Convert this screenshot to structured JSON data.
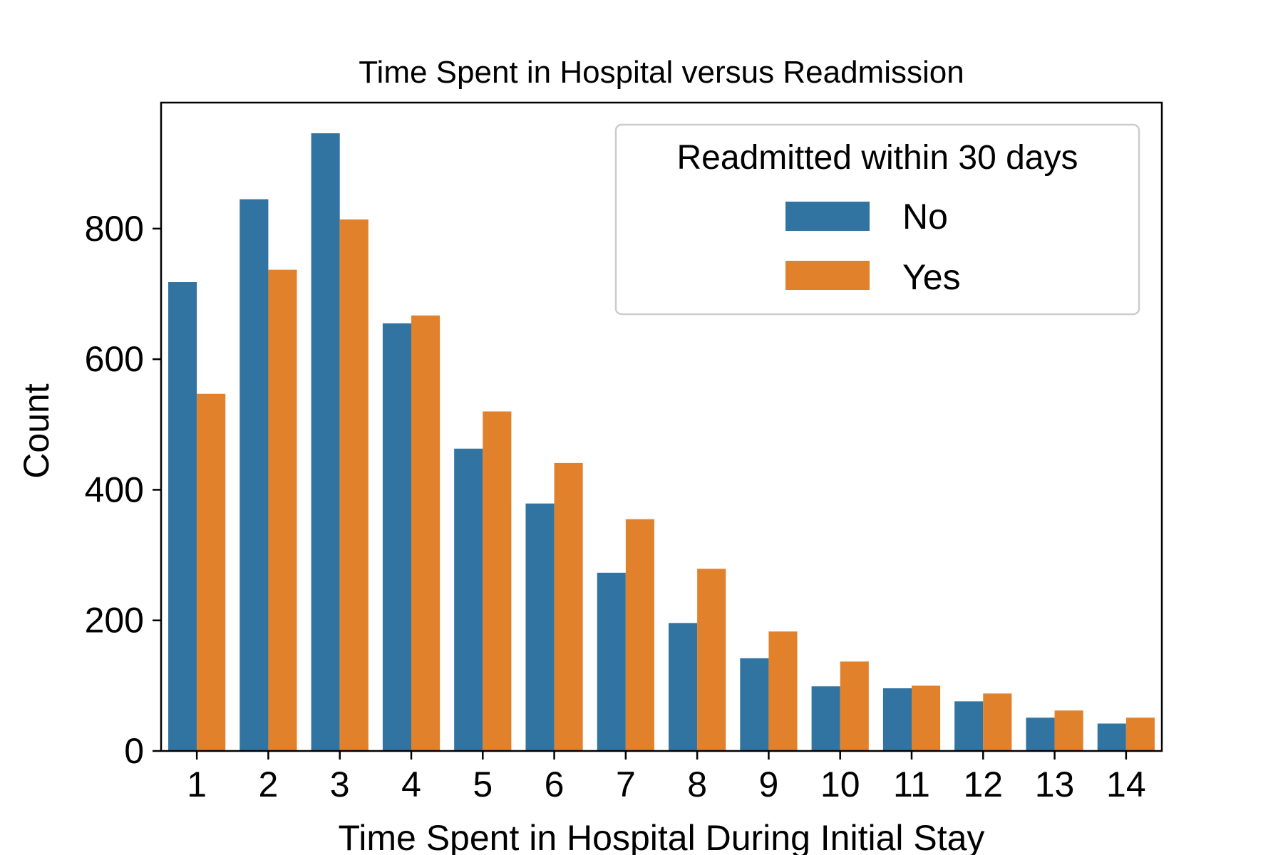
{
  "chart_data": {
    "type": "bar",
    "title": "Time Spent in Hospital versus Readmission",
    "xlabel": "Time Spent in Hospital During Initial Stay",
    "ylabel": "Count",
    "categories": [
      "1",
      "2",
      "3",
      "4",
      "5",
      "6",
      "7",
      "8",
      "9",
      "10",
      "11",
      "12",
      "13",
      "14"
    ],
    "series": [
      {
        "name": "No",
        "color": "#3274a1",
        "values": [
          718,
          845,
          946,
          655,
          463,
          379,
          273,
          196,
          142,
          99,
          96,
          76,
          51,
          42
        ]
      },
      {
        "name": "Yes",
        "color": "#e1812c",
        "values": [
          547,
          737,
          814,
          667,
          520,
          441,
          355,
          279,
          183,
          137,
          100,
          88,
          62,
          51
        ]
      }
    ],
    "ylim": [
      0,
      993
    ],
    "yticks": [
      0,
      200,
      400,
      600,
      800
    ],
    "legend": {
      "title": "Readmitted within 30 days",
      "position": "top-right"
    },
    "grid": false
  }
}
